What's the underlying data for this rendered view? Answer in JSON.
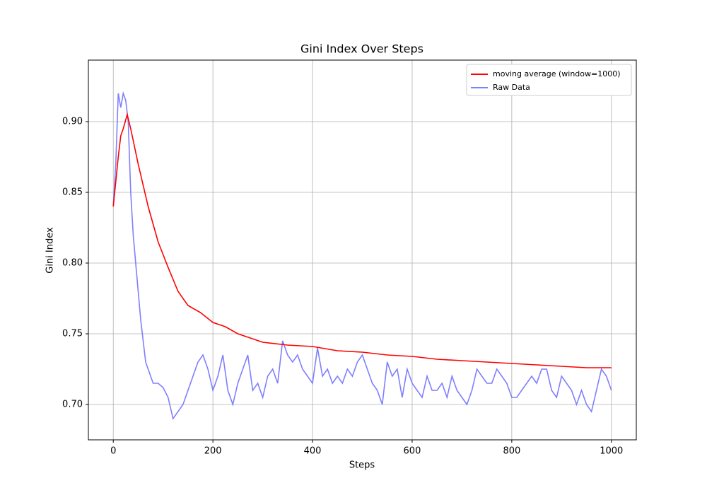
{
  "chart_data": {
    "type": "line",
    "title": "Gini Index Over Steps",
    "x_label": "Steps",
    "y_label": "Gini Index",
    "xlim": [
      -50,
      1050
    ],
    "ylim": [
      0.675,
      0.9435
    ],
    "xticks": [
      0,
      200,
      400,
      600,
      800,
      1000
    ],
    "yticks": [
      {
        "value": 0.7,
        "label": "0.70"
      },
      {
        "value": 0.75,
        "label": "0.75"
      },
      {
        "value": 0.8,
        "label": "0.80"
      },
      {
        "value": 0.85,
        "label": "0.85"
      },
      {
        "value": 0.9,
        "label": "0.90"
      }
    ],
    "grid": true,
    "legend": "upper right",
    "series": [
      {
        "name": "moving average (window=1000)",
        "color": "#ff0000",
        "x": [
          0,
          10,
          15,
          20,
          28,
          35,
          50,
          70,
          90,
          110,
          130,
          150,
          175,
          200,
          225,
          250,
          275,
          300,
          350,
          400,
          450,
          500,
          550,
          600,
          650,
          700,
          750,
          800,
          850,
          900,
          950,
          1000
        ],
        "values": [
          0.84,
          0.875,
          0.89,
          0.895,
          0.905,
          0.895,
          0.87,
          0.84,
          0.815,
          0.797,
          0.78,
          0.77,
          0.765,
          0.758,
          0.755,
          0.75,
          0.747,
          0.744,
          0.742,
          0.741,
          0.738,
          0.737,
          0.735,
          0.734,
          0.732,
          0.731,
          0.73,
          0.729,
          0.728,
          0.727,
          0.726,
          0.726
        ]
      },
      {
        "name": "Raw Data",
        "color": "#7f7fff",
        "x": [
          0,
          5,
          10,
          15,
          20,
          25,
          30,
          35,
          40,
          45,
          50,
          55,
          60,
          65,
          70,
          80,
          90,
          100,
          110,
          120,
          130,
          140,
          150,
          160,
          170,
          180,
          190,
          200,
          210,
          220,
          230,
          240,
          250,
          260,
          270,
          280,
          290,
          300,
          310,
          320,
          330,
          340,
          350,
          360,
          370,
          380,
          390,
          400,
          410,
          420,
          430,
          440,
          450,
          460,
          470,
          480,
          490,
          500,
          510,
          520,
          530,
          540,
          550,
          560,
          570,
          580,
          590,
          600,
          610,
          620,
          630,
          640,
          650,
          660,
          670,
          680,
          690,
          700,
          710,
          720,
          730,
          740,
          750,
          760,
          770,
          780,
          790,
          800,
          810,
          820,
          830,
          840,
          850,
          860,
          870,
          880,
          890,
          900,
          910,
          920,
          930,
          940,
          950,
          960,
          970,
          980,
          990,
          1000
        ],
        "values": [
          0.84,
          0.87,
          0.92,
          0.91,
          0.92,
          0.915,
          0.9,
          0.85,
          0.82,
          0.8,
          0.78,
          0.76,
          0.745,
          0.73,
          0.725,
          0.715,
          0.715,
          0.712,
          0.705,
          0.69,
          0.695,
          0.7,
          0.71,
          0.72,
          0.73,
          0.735,
          0.725,
          0.71,
          0.72,
          0.735,
          0.71,
          0.7,
          0.715,
          0.725,
          0.735,
          0.71,
          0.715,
          0.705,
          0.72,
          0.725,
          0.715,
          0.745,
          0.735,
          0.73,
          0.735,
          0.725,
          0.72,
          0.715,
          0.74,
          0.72,
          0.725,
          0.715,
          0.72,
          0.715,
          0.725,
          0.72,
          0.73,
          0.735,
          0.725,
          0.715,
          0.71,
          0.7,
          0.73,
          0.72,
          0.725,
          0.705,
          0.725,
          0.715,
          0.71,
          0.705,
          0.72,
          0.71,
          0.71,
          0.715,
          0.705,
          0.72,
          0.71,
          0.705,
          0.7,
          0.71,
          0.725,
          0.72,
          0.715,
          0.715,
          0.725,
          0.72,
          0.715,
          0.705,
          0.705,
          0.71,
          0.715,
          0.72,
          0.715,
          0.725,
          0.725,
          0.71,
          0.705,
          0.72,
          0.715,
          0.71,
          0.7,
          0.71,
          0.7,
          0.695,
          0.71,
          0.725,
          0.72,
          0.71
        ]
      }
    ]
  }
}
